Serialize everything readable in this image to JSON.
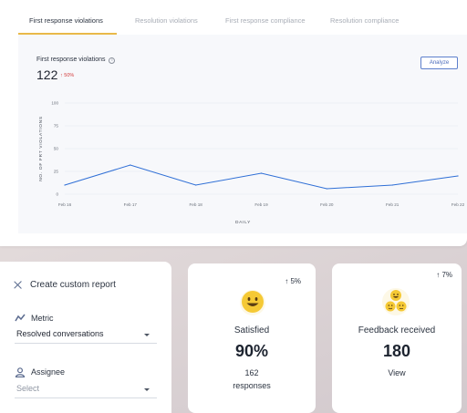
{
  "tabs": [
    {
      "label": "First response violations",
      "active": true
    },
    {
      "label": "Resolution violations",
      "active": false
    },
    {
      "label": "First response compliance",
      "active": false
    },
    {
      "label": "Resolution compliance",
      "active": false
    }
  ],
  "chart_header": {
    "title": "First response violations",
    "info_icon": "i",
    "value": "122",
    "change": "50%",
    "change_direction": "up",
    "analyze_label": "Analyze"
  },
  "chart_data": {
    "type": "line",
    "x": [
      "Feb 16",
      "Feb 17",
      "Feb 18",
      "Feb 19",
      "Feb 20",
      "Feb 21",
      "Feb 22"
    ],
    "series": [
      {
        "values": [
          10,
          32,
          10,
          23,
          6,
          10,
          20
        ]
      }
    ],
    "ylim": [
      0,
      100
    ],
    "yticks": [
      0,
      25,
      50,
      75,
      100
    ],
    "xlabel": "DAILY",
    "ylabel": "NO. OF FRT VIOLATIONS",
    "grid": true,
    "line_color": "#2f6fd6"
  },
  "report": {
    "title": "Create custom report",
    "metric_label": "Metric",
    "metric_value": "Resolved conversations",
    "assignee_label": "Assignee",
    "assignee_placeholder": "Select"
  },
  "stats": [
    {
      "change": "5%",
      "label": "Satisfied",
      "value": "90%",
      "sub_line1": "162",
      "sub_line2": "responses",
      "icon": "smiley-emoji-icon"
    },
    {
      "change": "7%",
      "label": "Feedback received",
      "value": "180",
      "sub_line1": "View",
      "icon": "emoji-group-icon"
    }
  ],
  "colors": {
    "accent_tab": "#e9b949",
    "line": "#2f6fd6",
    "down": "#d33b3b",
    "emoji": "#f5c935"
  }
}
